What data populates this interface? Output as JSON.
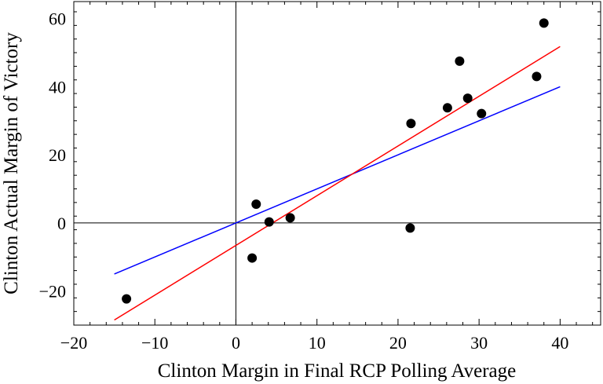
{
  "chart_data": {
    "type": "scatter",
    "title": "",
    "xlabel": "Clinton Margin in Final RCP Polling Average",
    "ylabel": "Clinton Actual Margin of Victory",
    "xlim": [
      -20,
      45
    ],
    "ylim": [
      -30,
      65
    ],
    "x_ticks": [
      -20,
      -10,
      0,
      10,
      20,
      30,
      40
    ],
    "x_tick_labels": [
      "−20",
      "−10",
      "0",
      "10",
      "20",
      "30",
      "40"
    ],
    "y_ticks": [
      -20,
      0,
      20,
      40,
      60
    ],
    "y_tick_labels": [
      "−20",
      "0",
      "20",
      "40",
      "60"
    ],
    "grid": false,
    "zero_axes": true,
    "points": [
      {
        "x": -13.5,
        "y": -22.3
      },
      {
        "x": 2.0,
        "y": -10.3
      },
      {
        "x": 2.5,
        "y": 5.5
      },
      {
        "x": 4.1,
        "y": 0.3
      },
      {
        "x": 6.7,
        "y": 1.5
      },
      {
        "x": 21.6,
        "y": 29.2
      },
      {
        "x": 21.5,
        "y": -1.5
      },
      {
        "x": 26.1,
        "y": 33.8
      },
      {
        "x": 27.6,
        "y": 47.5
      },
      {
        "x": 28.6,
        "y": 36.6
      },
      {
        "x": 30.3,
        "y": 32.1
      },
      {
        "x": 37.1,
        "y": 43.0
      },
      {
        "x": 38.0,
        "y": 58.7
      }
    ],
    "lines": [
      {
        "color": "#0000ff",
        "x": [
          -15,
          40
        ],
        "y": [
          -15,
          40
        ]
      },
      {
        "color": "#ff0000",
        "x": [
          -15,
          40
        ],
        "y": [
          -28.5,
          51.8
        ]
      }
    ],
    "point_color": "#000000"
  }
}
